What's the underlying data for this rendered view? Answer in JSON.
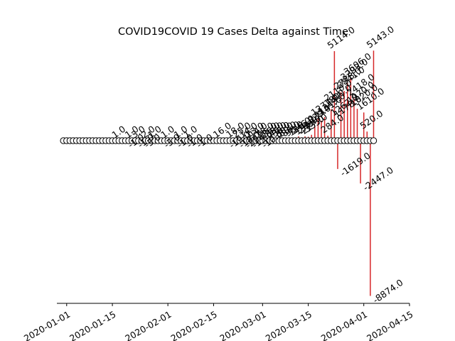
{
  "chart_data": {
    "type": "bar",
    "style": "timeline-stem",
    "title": "COVID19COVID 19 Cases Delta against Time",
    "xlabel": "",
    "ylabel": "",
    "x_axis": "date",
    "xlim": [
      "2019-12-29",
      "2020-04-15"
    ],
    "ylim": [
      -9300,
      5600
    ],
    "grid": false,
    "legend": "none",
    "y_axis_visible": false,
    "stem_color": "#d62728",
    "marker_face": "#ffffff",
    "marker_edge": "#000000",
    "first_date": "2019-12-31",
    "last_date": "2020-04-04",
    "x_ticks": [
      "2020-01-01",
      "2020-01-15",
      "2020-02-01",
      "2020-02-15",
      "2020-03-01",
      "2020-03-15",
      "2020-04-01",
      "2020-04-15"
    ],
    "points": [
      {
        "x": "2020-01-17",
        "y": 1
      },
      {
        "x": "2020-01-19",
        "y": -1
      },
      {
        "x": "2020-01-21",
        "y": 1
      },
      {
        "x": "2020-01-22",
        "y": -1
      },
      {
        "x": "2020-01-23",
        "y": 3
      },
      {
        "x": "2020-01-24",
        "y": -3
      },
      {
        "x": "2020-01-26",
        "y": 2
      },
      {
        "x": "2020-01-28",
        "y": 1
      },
      {
        "x": "2020-01-30",
        "y": -3
      },
      {
        "x": "2020-02-01",
        "y": 1
      },
      {
        "x": "2020-02-03",
        "y": -1
      },
      {
        "x": "2020-02-05",
        "y": 1
      },
      {
        "x": "2020-02-06",
        "y": -1
      },
      {
        "x": "2020-02-08",
        "y": 1
      },
      {
        "x": "2020-02-09",
        "y": -1
      },
      {
        "x": "2020-02-17",
        "y": 16
      },
      {
        "x": "2020-02-19",
        "y": -19
      },
      {
        "x": "2020-02-21",
        "y": 18
      },
      {
        "x": "2020-02-22",
        "y": -18
      },
      {
        "x": "2020-02-23",
        "y": 25
      },
      {
        "x": "2020-02-24",
        "y": -25
      },
      {
        "x": "2020-02-25",
        "y": 14
      },
      {
        "x": "2020-02-26",
        "y": -15
      },
      {
        "x": "2020-02-27",
        "y": 13
      },
      {
        "x": "2020-02-28",
        "y": 14
      },
      {
        "x": "2020-02-29",
        "y": -10
      },
      {
        "x": "2020-03-01",
        "y": 18
      },
      {
        "x": "2020-03-02",
        "y": 15
      },
      {
        "x": "2020-03-03",
        "y": 35
      },
      {
        "x": "2020-03-04",
        "y": 33
      },
      {
        "x": "2020-03-05",
        "y": 46
      },
      {
        "x": "2020-03-06",
        "y": 56
      },
      {
        "x": "2020-03-07",
        "y": 30
      },
      {
        "x": "2020-03-08",
        "y": 80
      },
      {
        "x": "2020-03-09",
        "y": 86
      },
      {
        "x": "2020-03-10",
        "y": 98
      },
      {
        "x": "2020-03-11",
        "y": 126
      },
      {
        "x": "2020-03-12",
        "y": 246
      },
      {
        "x": "2020-03-13",
        "y": 191
      },
      {
        "x": "2020-03-14",
        "y": 249
      },
      {
        "x": "2020-03-15",
        "y": 227
      },
      {
        "x": "2020-03-16",
        "y": 335
      },
      {
        "x": "2020-03-17",
        "y": 829
      },
      {
        "x": "2020-03-18",
        "y": 1277
      },
      {
        "x": "2020-03-19",
        "y": 1141
      },
      {
        "x": "2020-03-20",
        "y": 1349
      },
      {
        "x": "2020-03-21",
        "y": 284
      },
      {
        "x": "2020-03-22",
        "y": 1800
      },
      {
        "x": "2020-03-23",
        "y": 5114
      },
      {
        "x": "2020-03-24",
        "y": -1619
      },
      {
        "x": "2020-03-25",
        "y": 2778
      },
      {
        "x": "2020-03-26",
        "y": 2841
      },
      {
        "x": "2020-03-27",
        "y": 3293
      },
      {
        "x": "2020-03-28",
        "y": 3606
      },
      {
        "x": "2020-03-29",
        "y": 2418
      },
      {
        "x": "2020-03-30",
        "y": 1820
      },
      {
        "x": "2020-03-31",
        "y": -2447
      },
      {
        "x": "2020-04-01",
        "y": 1610
      },
      {
        "x": "2020-04-02",
        "y": 520
      },
      {
        "x": "2020-04-03",
        "y": -8874
      },
      {
        "x": "2020-04-04",
        "y": 5143
      }
    ],
    "extra_labels": [
      {
        "x": "2020-03-22",
        "y": 2110
      },
      {
        "x": "2020-03-24",
        "y": 1262
      },
      {
        "x": "2020-03-25",
        "y": 1178
      },
      {
        "x": "2020-03-29",
        "y": 1970
      }
    ]
  }
}
